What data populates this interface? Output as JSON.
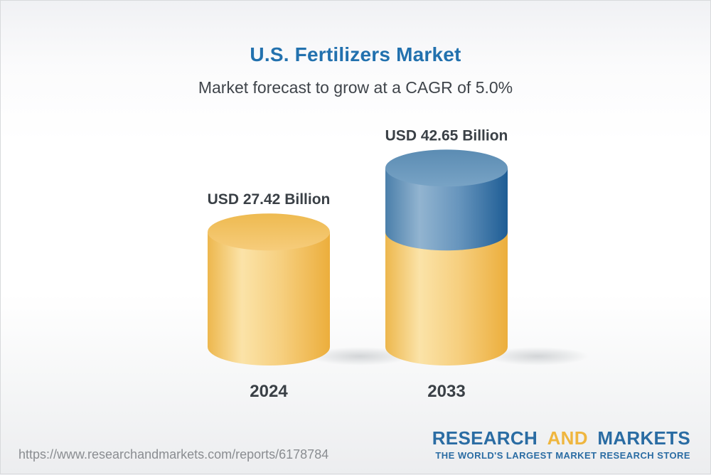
{
  "chart_data": {
    "type": "bar",
    "variant": "3d-cylinder",
    "title": "U.S. Fertilizers Market",
    "subtitle": "Market forecast to grow at a CAGR of 5.0%",
    "cagr_percent": 5.0,
    "unit": "USD Billion",
    "categories": [
      "2024",
      "2033"
    ],
    "values": [
      27.42,
      42.65
    ],
    "value_labels": [
      "USD 27.42 Billion",
      "USD 42.65 Billion"
    ],
    "base_year_value": 27.42,
    "legend_position": "none",
    "grid": false,
    "note": "2033 cylinder is stacked: gold base portion equals 2024 value, blue top portion is growth of 15.23"
  },
  "colors": {
    "title_blue": "#2271ae",
    "subtitle_gray": "#3f444a",
    "label_dark": "#3a4046",
    "bar_gold": "#f2c260",
    "bar_blue": "#5c8db4",
    "url_gray": "#8a8d91",
    "logo_blue": "#2a6ca3",
    "logo_gold": "#efb63f"
  },
  "footer": {
    "url": "https://www.researchandmarkets.com/reports/6178784",
    "logo": {
      "research": "RESEARCH",
      "and": "AND",
      "markets": "MARKETS",
      "tagline": "THE WORLD'S LARGEST MARKET RESEARCH STORE"
    }
  }
}
